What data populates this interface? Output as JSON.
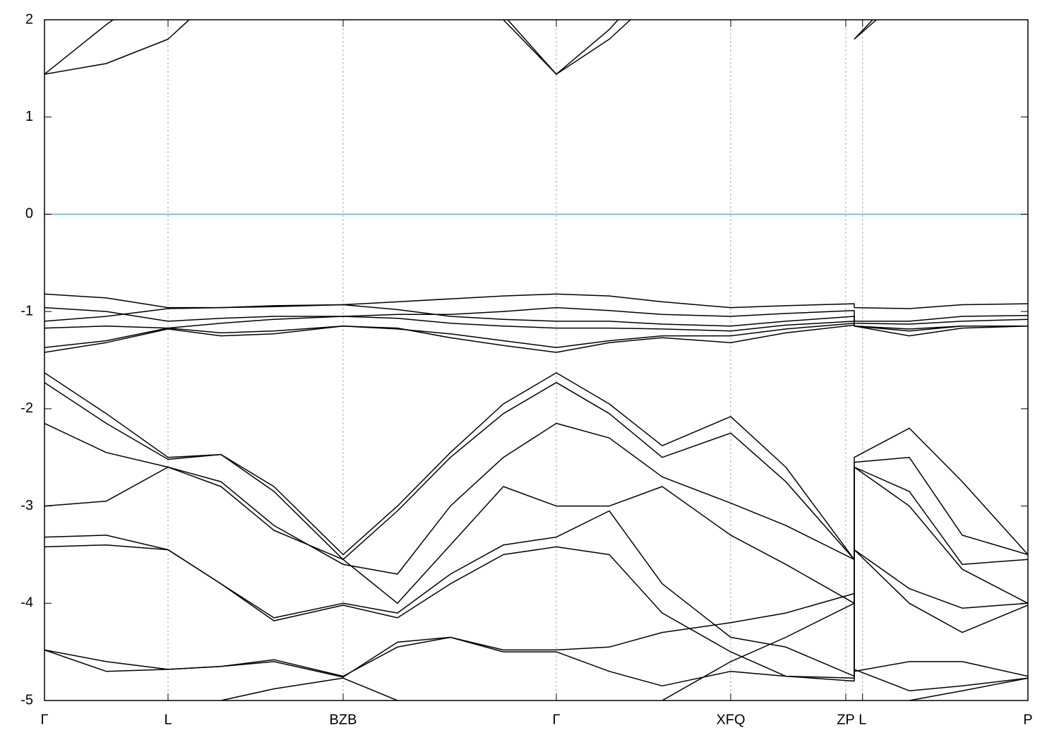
{
  "chart_data": {
    "type": "line",
    "x": [
      0,
      0.35,
      0.7,
      1.0,
      1.3,
      1.692,
      2.0,
      2.3,
      2.6,
      2.9,
      3.2,
      3.5,
      3.888,
      4.2,
      4.588,
      4.588,
      4.9,
      5.2,
      5.572
    ],
    "xlim": [
      0,
      5.572
    ],
    "xticks": [
      {
        "value": 0,
        "label": "Γ"
      },
      {
        "value": 0.7,
        "label": "L"
      },
      {
        "value": 1.692,
        "label": "BZB"
      },
      {
        "value": 2.9,
        "label": "Γ"
      },
      {
        "value": 3.888,
        "label": "XFQ"
      },
      {
        "value": 4.54,
        "label": "ZP"
      },
      {
        "value": 4.635,
        "label": "L"
      },
      {
        "value": 5.572,
        "label": "P"
      }
    ],
    "ylim": [
      -5,
      2
    ],
    "yticks": [
      -5,
      -4,
      -3,
      -2,
      -1,
      0,
      1,
      2
    ],
    "grid": "x",
    "line_color": "#000000",
    "hline": {
      "value": 0,
      "color": "#5ab4c8"
    },
    "series": [
      {
        "values": [
          -0.82,
          -0.86,
          -0.96,
          -0.96,
          -0.94,
          -0.93,
          -0.9,
          -0.87,
          -0.84,
          -0.82,
          -0.84,
          -0.9,
          -0.96,
          -0.94,
          -0.92,
          -0.96,
          -0.97,
          -0.93,
          -0.92
        ]
      },
      {
        "values": [
          -0.96,
          -1.0,
          -1.1,
          -1.07,
          -1.05,
          -1.05,
          -1.03,
          -1.03,
          -1.0,
          -0.96,
          -0.99,
          -1.03,
          -1.05,
          -1.02,
          -0.99,
          -1.1,
          -1.1,
          -1.05,
          -1.04
        ]
      },
      {
        "values": [
          -1.1,
          -1.05,
          -0.97,
          -0.96,
          -0.95,
          -0.93,
          -0.98,
          -1.05,
          -1.08,
          -1.1,
          -1.1,
          -1.13,
          -1.15,
          -1.1,
          -1.05,
          -1.12,
          -1.13,
          -1.1,
          -1.08
        ]
      },
      {
        "values": [
          -1.17,
          -1.15,
          -1.17,
          -1.12,
          -1.08,
          -1.05,
          -1.07,
          -1.12,
          -1.15,
          -1.17,
          -1.17,
          -1.18,
          -1.2,
          -1.14,
          -1.1,
          -1.15,
          -1.18,
          -1.15,
          -1.15
        ]
      },
      {
        "values": [
          -1.37,
          -1.3,
          -1.17,
          -1.22,
          -1.2,
          -1.15,
          -1.18,
          -1.23,
          -1.3,
          -1.37,
          -1.3,
          -1.25,
          -1.25,
          -1.18,
          -1.12,
          -1.15,
          -1.2,
          -1.15,
          -1.15
        ]
      },
      {
        "values": [
          -1.42,
          -1.32,
          -1.18,
          -1.25,
          -1.23,
          -1.15,
          -1.17,
          -1.27,
          -1.35,
          -1.42,
          -1.32,
          -1.27,
          -1.32,
          -1.22,
          -1.14,
          -1.15,
          -1.25,
          -1.17,
          -1.15
        ]
      },
      {
        "values": [
          -1.63,
          -2.05,
          -2.5,
          -2.47,
          -2.8,
          -3.5,
          -3.0,
          -2.45,
          -1.95,
          -1.63,
          -1.95,
          -2.38,
          -2.08,
          -2.6,
          -3.55,
          -2.5,
          -2.2,
          -2.75,
          -3.5
        ]
      },
      {
        "values": [
          -1.73,
          -2.15,
          -2.52,
          -2.47,
          -2.85,
          -3.55,
          -3.05,
          -2.5,
          -2.05,
          -1.73,
          -2.05,
          -2.5,
          -2.25,
          -2.75,
          -3.55,
          -2.55,
          -2.5,
          -3.3,
          -3.5
        ]
      },
      {
        "values": [
          -2.15,
          -2.45,
          -2.6,
          -2.75,
          -3.2,
          -3.6,
          -3.7,
          -3.0,
          -2.5,
          -2.15,
          -2.3,
          -2.7,
          -2.97,
          -3.2,
          -3.55,
          -2.6,
          -2.85,
          -3.6,
          -3.55
        ]
      },
      {
        "values": [
          -3.0,
          -2.95,
          -2.6,
          -2.8,
          -3.25,
          -3.55,
          -4.0,
          -3.4,
          -2.8,
          -3.0,
          -3.0,
          -2.8,
          -3.3,
          -3.6,
          -4.0,
          -2.6,
          -3.0,
          -3.65,
          -4.0
        ]
      },
      {
        "values": [
          -3.32,
          -3.3,
          -3.45,
          -3.8,
          -4.15,
          -4.0,
          -4.1,
          -3.7,
          -3.4,
          -3.32,
          -3.05,
          -3.8,
          -4.35,
          -4.45,
          -4.75,
          -3.45,
          -3.85,
          -4.05,
          -4.0
        ]
      },
      {
        "values": [
          -3.42,
          -3.4,
          -3.45,
          -3.8,
          -4.18,
          -4.02,
          -4.15,
          -3.8,
          -3.5,
          -3.42,
          -3.5,
          -4.1,
          -4.5,
          -4.75,
          -4.8,
          -3.45,
          -4.0,
          -4.3,
          -4.02
        ]
      },
      {
        "values": [
          -4.48,
          -4.6,
          -4.68,
          -4.65,
          -4.58,
          -4.75,
          -4.45,
          -4.35,
          -4.48,
          -4.48,
          -4.45,
          -4.3,
          -4.2,
          -4.1,
          -3.9,
          -4.7,
          -4.6,
          -4.6,
          -4.75
        ]
      },
      {
        "values": [
          -4.48,
          -4.7,
          -4.68,
          -4.65,
          -4.6,
          -4.76,
          -4.4,
          -4.35,
          -4.5,
          -4.5,
          -4.7,
          -4.85,
          -4.7,
          -4.75,
          -4.77,
          -4.68,
          -4.9,
          -4.85,
          -4.77
        ]
      },
      {
        "values": [
          null,
          null,
          null,
          -5.0,
          -4.88,
          -4.77,
          -5.0,
          null,
          null,
          null,
          null,
          null,
          null,
          null,
          null,
          null,
          -5.0,
          -4.9,
          -4.77
        ]
      },
      {
        "values": [
          null,
          null,
          null,
          null,
          null,
          null,
          null,
          null,
          null,
          null,
          null,
          -5.0,
          -4.6,
          -4.35,
          -4.0,
          null,
          null,
          null,
          null
        ]
      },
      {
        "values": [
          1.44,
          1.55,
          1.8,
          2.3,
          null,
          null,
          null,
          null,
          2.05,
          1.44,
          1.9,
          2.5,
          null,
          null,
          null,
          1.8,
          2.3,
          null,
          null
        ]
      },
      {
        "values": [
          1.44,
          1.95,
          2.4,
          null,
          null,
          null,
          null,
          null,
          2.0,
          1.44,
          1.8,
          2.3,
          null,
          null,
          null,
          1.8,
          2.4,
          null,
          null
        ]
      }
    ]
  }
}
